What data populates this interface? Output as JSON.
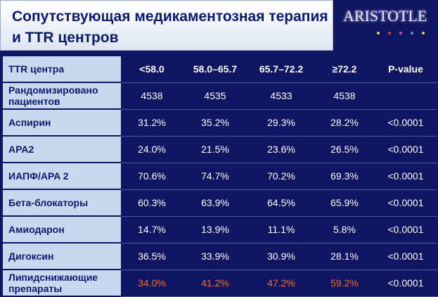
{
  "title": "Сопутствующая медикаментозная терапия и TTR центров",
  "logo": {
    "text": "ARISTOTLE",
    "dot_colors": [
      "#e8d23c",
      "#e0402a",
      "#d84aa0",
      "#5a9ad8",
      "#e8d23c"
    ]
  },
  "table": {
    "header": [
      "TTR центра",
      "<58.0",
      "58.0–65.7",
      "65.7–72.2",
      "≥72.2",
      "P-value"
    ],
    "rows": [
      {
        "label": "Рандомизировано пациентов",
        "values": [
          "4538",
          "4535",
          "4533",
          "4538",
          ""
        ]
      },
      {
        "label": "Аспирин",
        "values": [
          "31.2%",
          "35.2%",
          "29.3%",
          "28.2%",
          "<0.0001"
        ]
      },
      {
        "label": "APA2",
        "values": [
          "24.0%",
          "21.5%",
          "23.6%",
          "26.5%",
          "<0.0001"
        ]
      },
      {
        "label": "ИАПФ/APA 2",
        "values": [
          "70.6%",
          "74.7%",
          "70.2%",
          "69.3%",
          "<0.0001"
        ]
      },
      {
        "label": "Бета-блокаторы",
        "values": [
          "60.3%",
          "63.9%",
          "64.5%",
          "65.9%",
          "<0.0001"
        ]
      },
      {
        "label": "Амиодарон",
        "values": [
          "14.7%",
          "13.9%",
          "11.1%",
          "5.8%",
          "<0.0001"
        ]
      },
      {
        "label": "Дигоксин",
        "values": [
          "36.5%",
          "33.9%",
          "30.9%",
          "28.1%",
          "<0.0001"
        ]
      },
      {
        "label": "Липидснижающие препараты",
        "values": [
          "34.0%",
          "41.2%",
          "47.2%",
          "59.2%",
          "<0.0001"
        ]
      }
    ],
    "highlight_color": "#ff6a1a"
  }
}
